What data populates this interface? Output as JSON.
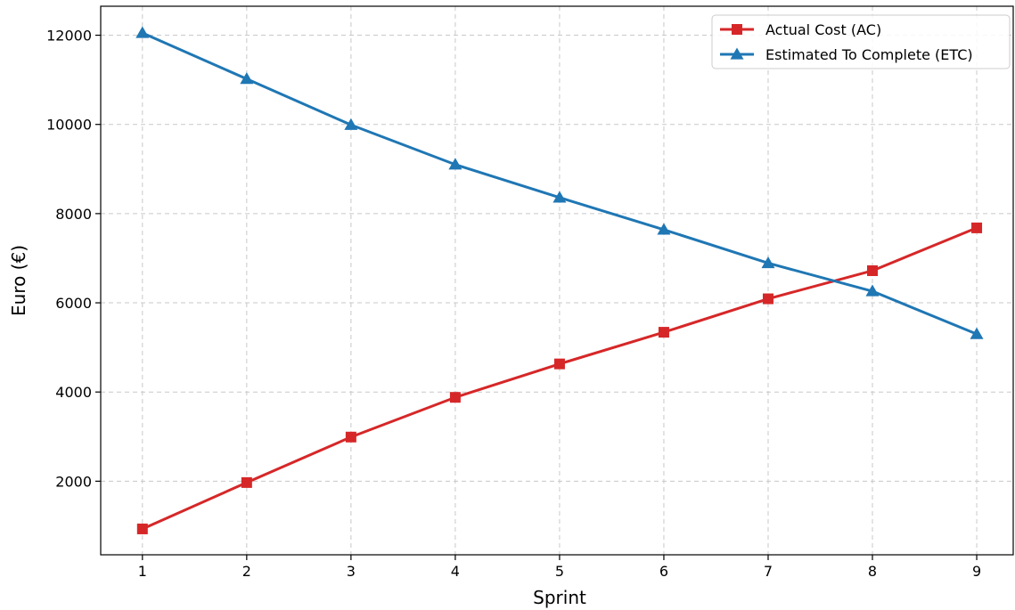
{
  "chart_data": {
    "type": "line",
    "xlabel": "Sprint",
    "ylabel": "Euro (€)",
    "x": [
      1,
      2,
      3,
      4,
      5,
      6,
      7,
      8,
      9
    ],
    "xlim": [
      0.6,
      9.35
    ],
    "ylim": [
      350,
      12650
    ],
    "xticks": [
      "1",
      "2",
      "3",
      "4",
      "5",
      "6",
      "7",
      "8",
      "9"
    ],
    "yticks": [
      "2000",
      "4000",
      "6000",
      "8000",
      "10000",
      "12000"
    ],
    "grid": true,
    "legend_position": "top-right",
    "series": [
      {
        "name": "Actual Cost (AC)",
        "color": "#d62728",
        "marker": "square",
        "values": [
          930,
          1970,
          2990,
          3880,
          4630,
          5340,
          6090,
          6720,
          7680
        ]
      },
      {
        "name": "Estimated To Complete (ETC)",
        "color": "#1f77b4",
        "marker": "triangle",
        "values": [
          12050,
          11020,
          9990,
          9100,
          8360,
          7640,
          6890,
          6260,
          5300
        ]
      }
    ]
  }
}
